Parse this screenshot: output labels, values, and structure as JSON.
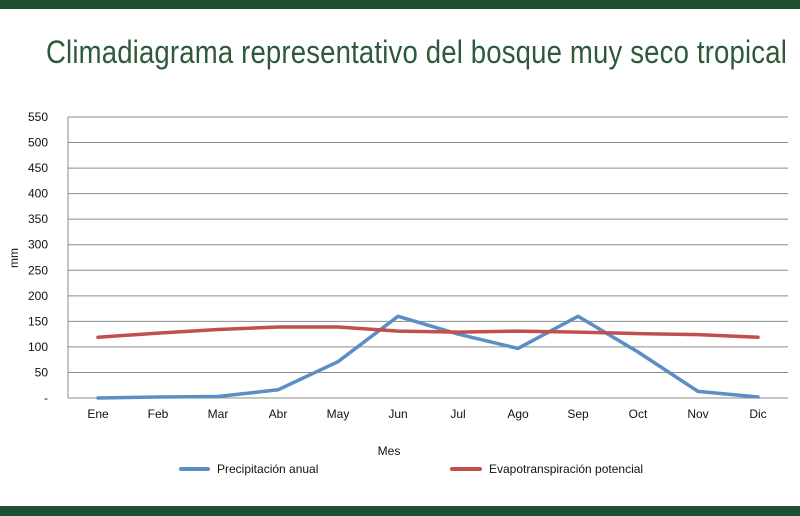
{
  "colors": {
    "band": "#1e4f2e",
    "title": "#2e5a3a",
    "grid": "#8c8c8c",
    "precipitation": "#5b8ec4",
    "evapotranspiration": "#c0504d"
  },
  "chart_data": {
    "type": "line",
    "title": "Climadiagrama representativo del bosque muy seco tropical",
    "xlabel": "Mes",
    "ylabel": "mm",
    "categories": [
      "Ene",
      "Feb",
      "Mar",
      "Abr",
      "May",
      "Jun",
      "Jul",
      "Ago",
      "Sep",
      "Oct",
      "Nov",
      "Dic"
    ],
    "ylim": [
      0,
      550
    ],
    "yticks": [
      0,
      50,
      100,
      150,
      200,
      250,
      300,
      350,
      400,
      450,
      500,
      550
    ],
    "ytick_labels": [
      "-",
      "50",
      "100",
      "150",
      "200",
      "250",
      "300",
      "350",
      "400",
      "450",
      "500",
      "550"
    ],
    "grid": true,
    "legend_position": "bottom",
    "series": [
      {
        "name": "Precipitación anual",
        "color": "#5b8ec4",
        "values": [
          0,
          2,
          3,
          16,
          71,
          160,
          125,
          97,
          160,
          90,
          13,
          2
        ]
      },
      {
        "name": "Evapotranspiración potencial",
        "color": "#c0504d",
        "values": [
          119,
          127,
          134,
          139,
          139,
          131,
          129,
          131,
          129,
          126,
          124,
          119
        ]
      }
    ]
  }
}
